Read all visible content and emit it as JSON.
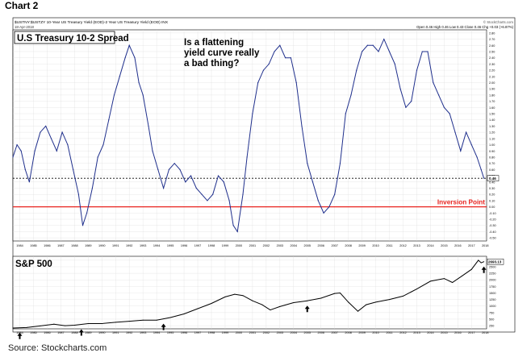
{
  "doc_title": "Chart 2",
  "source": "Source: Stockcharts.com",
  "header": {
    "symbol_line": "$USTNY:$USTZY  10-Year US Treasury Yield (EOD)-2 Year US Treasury Yield (EOD)  INX",
    "date_line": "18-Apr-2018",
    "watermark": "© StockCharts.com",
    "ohlc_line": "Open 0.46  High 0.46  Low 0.43  Close 0.46  Chg +0.03 (+6.87%)"
  },
  "colors": {
    "series": "#1f2f8c",
    "sp": "#000000",
    "inversion": "#e8231f",
    "grid": "#d8d8d8"
  },
  "chart_data": [
    {
      "type": "line",
      "title": "U.S Treasury 10-2 Spread",
      "annotation": "Is a flattening yield curve really a bad thing?",
      "reference_lines": [
        {
          "label": "Inversion Point",
          "value": 0.0,
          "style": "solid-red"
        },
        {
          "label": "0.46",
          "value": 0.46,
          "style": "dashed-black"
        }
      ],
      "current_value_label": "0.46",
      "ylim": [
        -0.55,
        2.85
      ],
      "ytick_labels": [
        "2.80",
        "2.70",
        "2.60",
        "2.50",
        "2.40",
        "2.30",
        "2.20",
        "2.10",
        "2.00",
        "1.90",
        "1.80",
        "1.70",
        "1.60",
        "1.50",
        "1.40",
        "1.30",
        "1.20",
        "1.10",
        "1.00",
        "0.90",
        "0.80",
        "0.70",
        "0.60",
        "0.50",
        "0.40",
        "0.30",
        "0.20",
        "0.10",
        "0.00",
        "-0.10",
        "-0.20",
        "-0.30",
        "-0.40",
        "-0.50"
      ],
      "xlim": [
        1984.0,
        2018.6
      ],
      "xtick_labels": [
        "1984",
        "1985",
        "1986",
        "1987",
        "1988",
        "1989",
        "1990",
        "1991",
        "1992",
        "1993",
        "1994",
        "1995",
        "1996",
        "1997",
        "1998",
        "1999",
        "2000",
        "2001",
        "2002",
        "2003",
        "2004",
        "2005",
        "2006",
        "2007",
        "2008",
        "2009",
        "2010",
        "2011",
        "2012",
        "2013",
        "2014",
        "2015",
        "2016",
        "2017",
        "2018"
      ],
      "x": [
        1984.0,
        1984.3,
        1984.6,
        1984.9,
        1985.2,
        1985.6,
        1986.0,
        1986.4,
        1986.8,
        1987.2,
        1987.6,
        1988.0,
        1988.4,
        1988.8,
        1989.1,
        1989.4,
        1989.8,
        1990.2,
        1990.6,
        1991.0,
        1991.4,
        1991.8,
        1992.2,
        1992.5,
        1992.9,
        1993.2,
        1993.5,
        1993.9,
        1994.2,
        1994.6,
        1995.0,
        1995.4,
        1995.8,
        1996.2,
        1996.6,
        1997.0,
        1997.4,
        1997.8,
        1998.2,
        1998.6,
        1999.0,
        1999.4,
        1999.8,
        2000.1,
        2000.4,
        2000.8,
        2001.1,
        2001.5,
        2001.9,
        2002.3,
        2002.7,
        2003.1,
        2003.5,
        2003.9,
        2004.3,
        2004.7,
        2005.1,
        2005.5,
        2005.9,
        2006.3,
        2006.7,
        2007.1,
        2007.5,
        2007.9,
        2008.3,
        2008.7,
        2009.1,
        2009.5,
        2009.9,
        2010.3,
        2010.7,
        2011.1,
        2011.5,
        2011.9,
        2012.3,
        2012.7,
        2013.1,
        2013.5,
        2013.9,
        2014.3,
        2014.7,
        2015.1,
        2015.5,
        2015.9,
        2016.3,
        2016.7,
        2017.1,
        2017.5,
        2017.9,
        2018.2,
        2018.4
      ],
      "y": [
        0.8,
        1.0,
        0.9,
        0.6,
        0.4,
        0.9,
        1.2,
        1.3,
        1.1,
        0.9,
        1.2,
        1.0,
        0.6,
        0.2,
        -0.3,
        -0.1,
        0.3,
        0.8,
        1.0,
        1.4,
        1.8,
        2.1,
        2.4,
        2.6,
        2.4,
        2.0,
        1.8,
        1.3,
        0.9,
        0.6,
        0.3,
        0.6,
        0.7,
        0.6,
        0.4,
        0.5,
        0.3,
        0.2,
        0.1,
        0.2,
        0.5,
        0.4,
        0.1,
        -0.3,
        -0.4,
        0.2,
        0.8,
        1.5,
        2.0,
        2.2,
        2.3,
        2.5,
        2.6,
        2.4,
        2.4,
        2.0,
        1.3,
        0.7,
        0.4,
        0.1,
        -0.1,
        0.0,
        0.2,
        0.7,
        1.5,
        1.8,
        2.2,
        2.5,
        2.6,
        2.6,
        2.5,
        2.7,
        2.5,
        2.3,
        1.9,
        1.6,
        1.7,
        2.2,
        2.5,
        2.5,
        2.0,
        1.8,
        1.6,
        1.5,
        1.2,
        0.9,
        1.2,
        1.0,
        0.8,
        0.6,
        0.46
      ]
    },
    {
      "type": "line",
      "title": "S&P 500",
      "current_value_label": "2693.13",
      "ylim": [
        130,
        2900
      ],
      "ytick_labels": [
        "2750",
        "2500",
        "2250",
        "2000",
        "1750",
        "1500",
        "1250",
        "1000",
        "750",
        "500",
        "250"
      ],
      "xlim": [
        1984.0,
        2018.6
      ],
      "xtick_labels": [
        "1984",
        "1985",
        "1986",
        "1987",
        "1988",
        "1989",
        "1990",
        "1991",
        "1992",
        "1993",
        "1994",
        "1995",
        "1996",
        "1997",
        "1998",
        "1999",
        "2000",
        "2001",
        "2002",
        "2003",
        "2004",
        "2005",
        "2006",
        "2007",
        "2008",
        "2009",
        "2010",
        "2011",
        "2012",
        "2013",
        "2014",
        "2015",
        "2016",
        "2017",
        "2018"
      ],
      "x": [
        1984.0,
        1985.0,
        1986.0,
        1987.0,
        1987.8,
        1988.5,
        1989.5,
        1990.5,
        1991.5,
        1992.5,
        1993.5,
        1994.5,
        1995.5,
        1996.5,
        1997.5,
        1998.5,
        1999.5,
        2000.2,
        2000.8,
        2001.5,
        2002.2,
        2002.8,
        2003.5,
        2004.5,
        2005.5,
        2006.5,
        2007.5,
        2007.9,
        2008.5,
        2009.2,
        2009.8,
        2010.5,
        2011.5,
        2012.5,
        2013.5,
        2014.5,
        2015.5,
        2016.1,
        2016.8,
        2017.5,
        2018.0,
        2018.2,
        2018.4
      ],
      "y": [
        160,
        180,
        240,
        310,
        250,
        270,
        330,
        330,
        380,
        420,
        460,
        460,
        560,
        700,
        900,
        1100,
        1350,
        1450,
        1400,
        1200,
        1050,
        850,
        980,
        1130,
        1200,
        1300,
        1480,
        1500,
        1150,
        800,
        1050,
        1150,
        1250,
        1380,
        1650,
        1950,
        2050,
        1900,
        2150,
        2400,
        2750,
        2650,
        2693
      ],
      "markers_at_x": [
        1984.5,
        1989.0,
        1995.0,
        2005.5,
        2018.4
      ]
    }
  ]
}
